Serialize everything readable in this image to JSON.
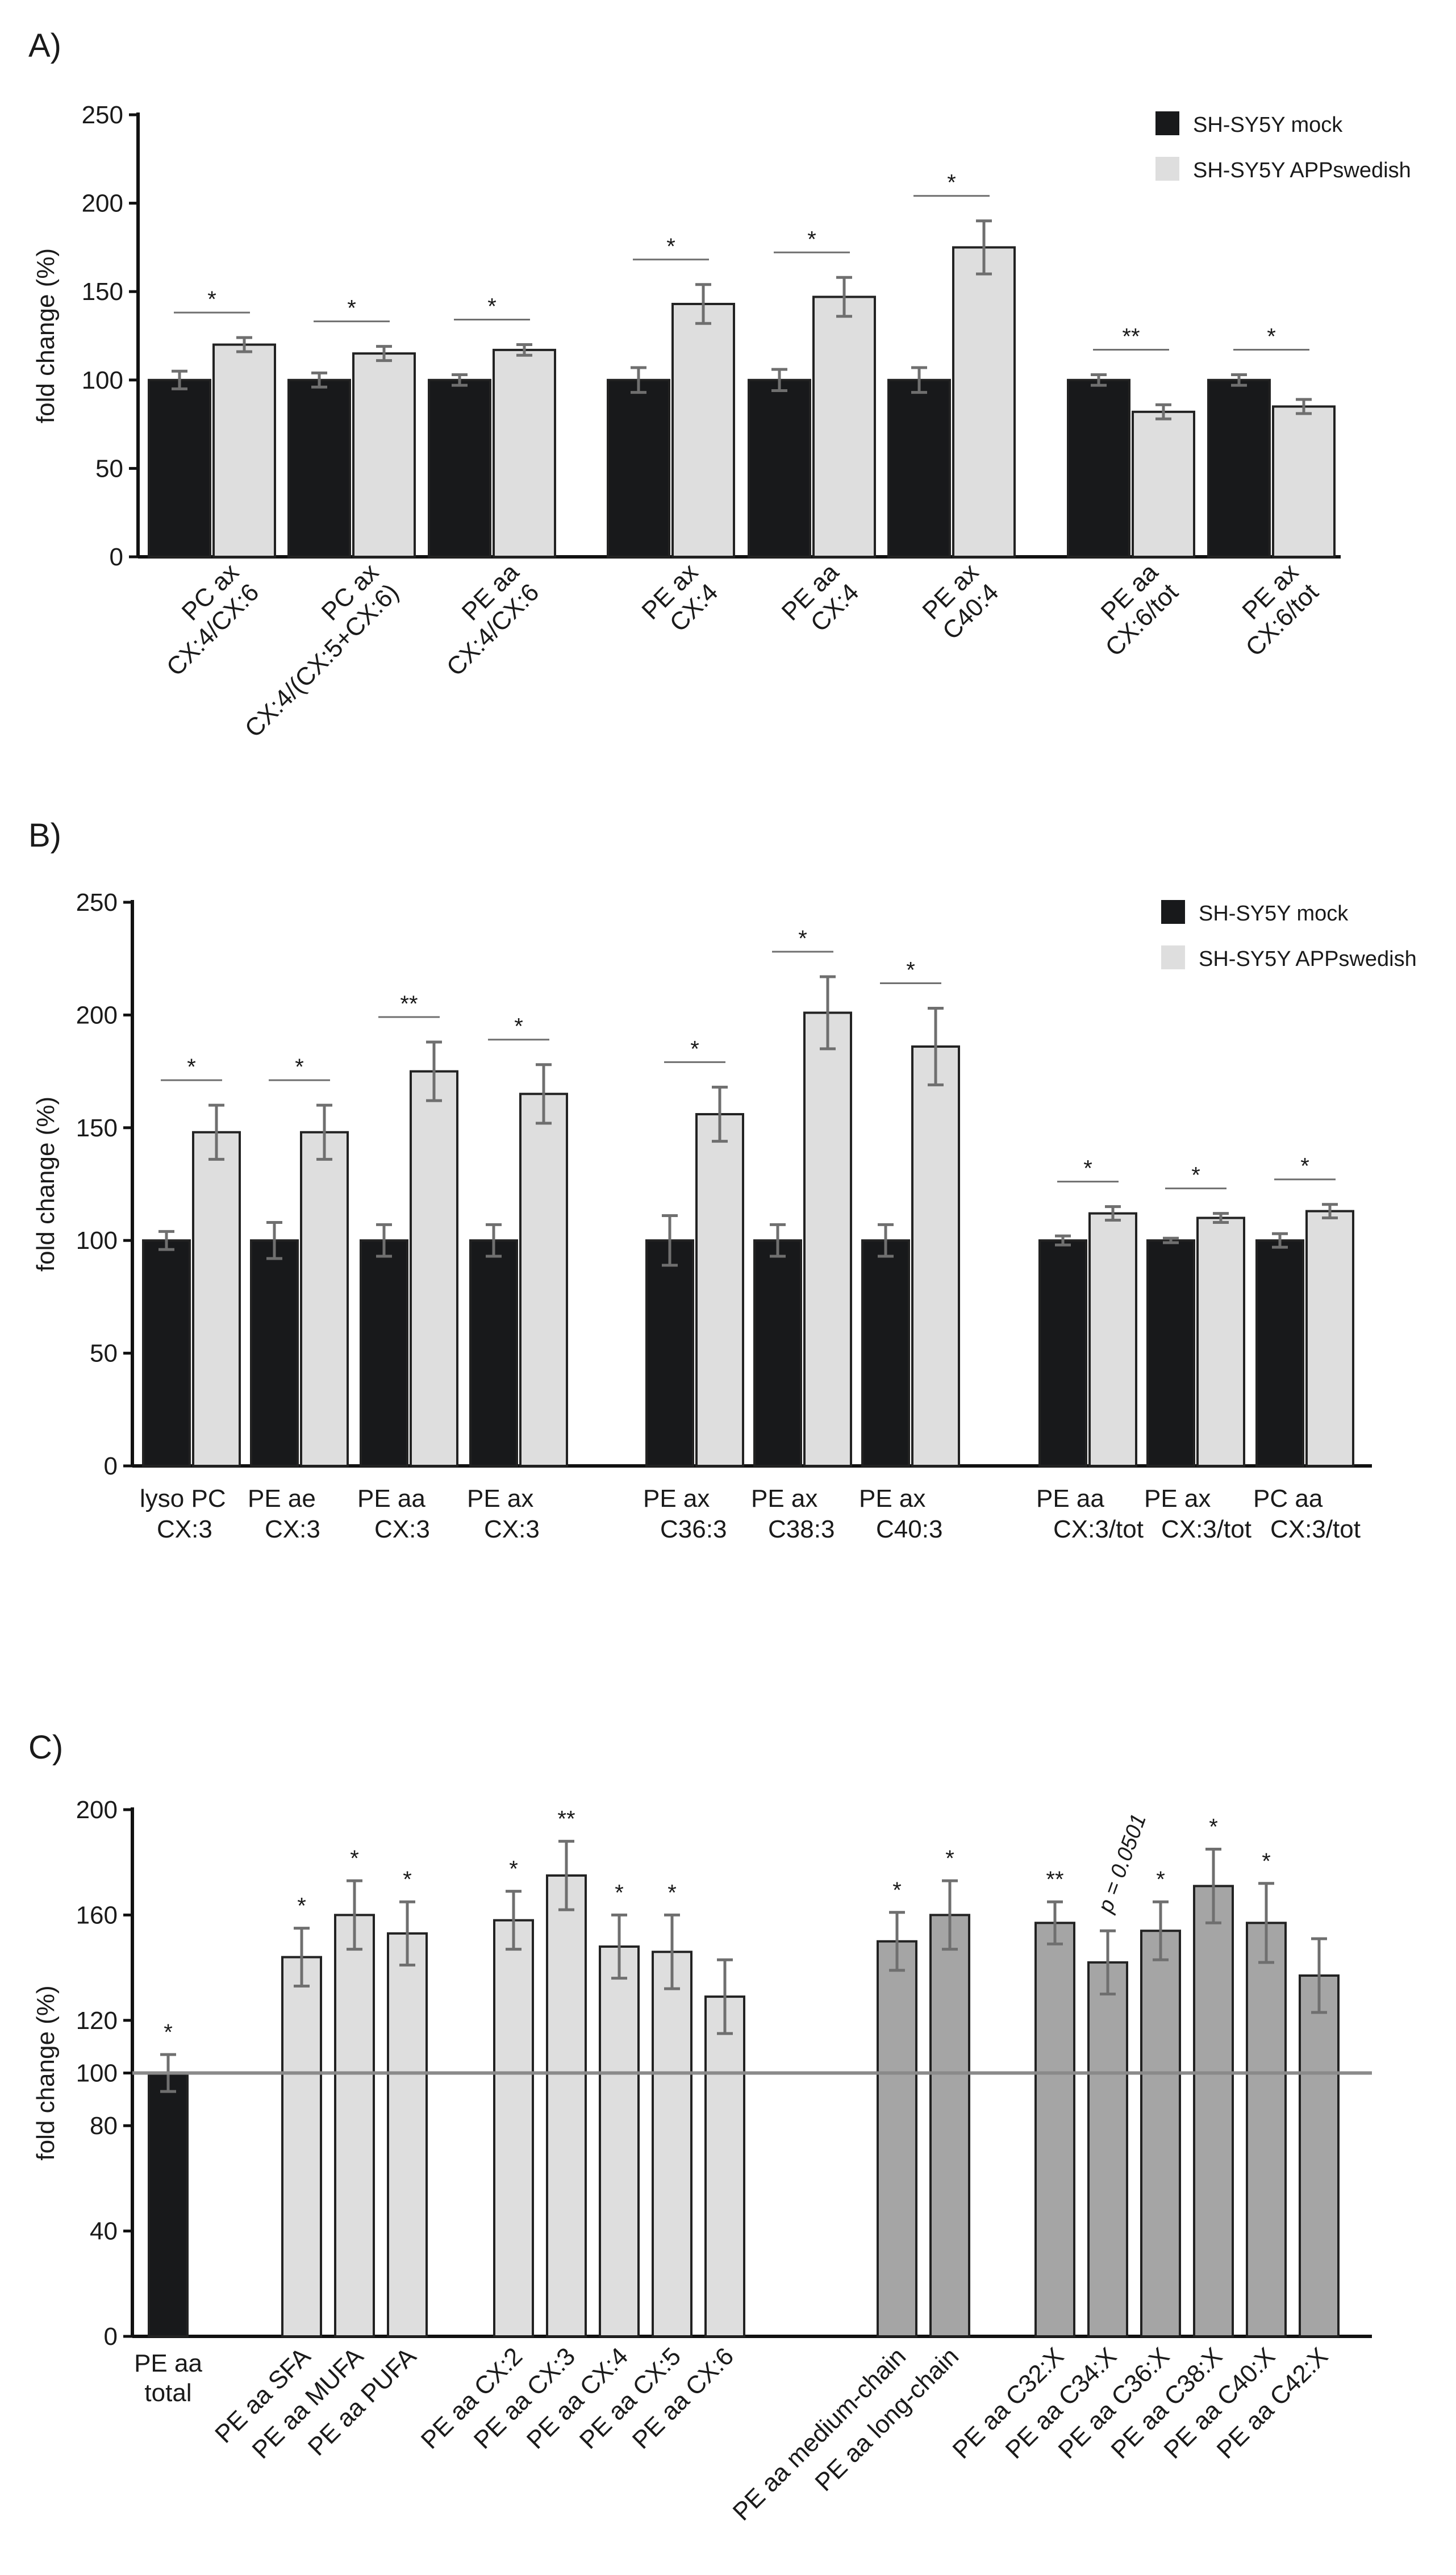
{
  "figure": {
    "colors": {
      "mock": "#18191b",
      "app": "#dedede",
      "grey": "#a5a5a5",
      "error": "#6f6f6f",
      "refline": "#8a8a8a"
    }
  },
  "chart_data": [
    {
      "panel": "A)",
      "type": "bar",
      "ylabel": "fold change (%)",
      "ylim": [
        0,
        250
      ],
      "yticks": [
        0,
        50,
        100,
        150,
        200,
        250
      ],
      "legend": [
        "SH-SY5Y mock",
        "SH-SY5Y APPswedish"
      ],
      "categories": [
        [
          "PC ax",
          "CX:4/CX:6"
        ],
        [
          "PC ax",
          "CX:4/(CX:5+CX:6)"
        ],
        [
          "PE aa",
          "CX:4/CX:6"
        ],
        [
          "PE ax",
          "CX:4"
        ],
        [
          "PE aa",
          "CX:4"
        ],
        [
          "PE ax",
          "C40:4"
        ],
        [
          "PE aa",
          "CX:6/tot"
        ],
        [
          "PE ax",
          "CX:6/tot"
        ]
      ],
      "series": [
        {
          "name": "SH-SY5Y mock",
          "values": [
            100,
            100,
            100,
            100,
            100,
            100,
            100,
            100
          ],
          "errors": [
            5,
            4,
            3,
            7,
            6,
            7,
            3,
            3
          ]
        },
        {
          "name": "SH-SY5Y APPswedish",
          "values": [
            120,
            115,
            117,
            143,
            147,
            175,
            82,
            85
          ],
          "errors": [
            4,
            4,
            3,
            11,
            11,
            15,
            4,
            4
          ]
        }
      ],
      "significance": [
        "*",
        "*",
        "*",
        "*",
        "*",
        "*",
        "**",
        "*"
      ]
    },
    {
      "panel": "B)",
      "type": "bar",
      "ylabel": "fold change (%)",
      "ylim": [
        0,
        250
      ],
      "yticks": [
        0,
        50,
        100,
        150,
        200,
        250
      ],
      "legend": [
        "SH-SY5Y mock",
        "SH-SY5Y APPswedish"
      ],
      "categories": [
        [
          "lyso PC",
          "CX:3"
        ],
        [
          "PE ae",
          "CX:3"
        ],
        [
          "PE aa",
          "CX:3"
        ],
        [
          "PE ax",
          "CX:3"
        ],
        [
          "PE ax",
          "C36:3"
        ],
        [
          "PE ax",
          "C38:3"
        ],
        [
          "PE ax",
          "C40:3"
        ],
        [
          "PE aa",
          "CX:3/tot"
        ],
        [
          "PE ax",
          "CX:3/tot"
        ],
        [
          "PC aa",
          "CX:3/tot"
        ]
      ],
      "series": [
        {
          "name": "SH-SY5Y mock",
          "values": [
            100,
            100,
            100,
            100,
            100,
            100,
            100,
            100,
            100,
            100
          ],
          "errors": [
            4,
            8,
            7,
            7,
            11,
            7,
            7,
            2,
            1,
            3
          ]
        },
        {
          "name": "SH-SY5Y APPswedish",
          "values": [
            148,
            148,
            175,
            165,
            156,
            201,
            186,
            112,
            110,
            113
          ],
          "errors": [
            12,
            12,
            13,
            13,
            12,
            16,
            17,
            3,
            2,
            3
          ]
        }
      ],
      "significance": [
        "*",
        "*",
        "**",
        "*",
        "*",
        "*",
        "*",
        "*",
        "*",
        "*"
      ]
    },
    {
      "panel": "C)",
      "type": "bar",
      "ylabel": "fold change (%)",
      "ylim": [
        0,
        200
      ],
      "yticks": [
        0,
        40,
        80,
        100,
        120,
        160,
        200
      ],
      "reference_line": 100,
      "categories": [
        "PE aa total",
        "PE aa SFA",
        "PE aa MUFA",
        "PE aa PUFA",
        "PE aa CX:2",
        "PE aa CX:3",
        "PE aa CX:4",
        "PE aa CX:5",
        "PE aa CX:6",
        "PE aa medium-chain",
        "PE aa long-chain",
        "PE aa C32:X",
        "PE aa C34:X",
        "PE aa C36:X",
        "PE aa C38:X",
        "PE aa C40:X",
        "PE aa C42:X"
      ],
      "category_labels": [
        [
          "PE aa",
          "total"
        ],
        "PE aa SFA",
        "PE aa MUFA",
        "PE aa PUFA",
        "PE aa CX:2",
        "PE aa CX:3",
        "PE aa CX:4",
        "PE aa CX:5",
        "PE aa CX:6",
        "PE aa medium-chain",
        "PE aa long-chain",
        "PE aa C32:X",
        "PE aa C34:X",
        "PE aa C36:X",
        "PE aa C38:X",
        "PE aa C40:X",
        "PE aa C42:X"
      ],
      "values": [
        100,
        144,
        160,
        153,
        158,
        175,
        148,
        146,
        129,
        150,
        160,
        157,
        142,
        154,
        171,
        157,
        137
      ],
      "errors": [
        7,
        11,
        13,
        12,
        11,
        13,
        12,
        14,
        14,
        11,
        13,
        8,
        12,
        11,
        14,
        15,
        14
      ],
      "fill": [
        "mock",
        "app",
        "app",
        "app",
        "app",
        "app",
        "app",
        "app",
        "app",
        "grey",
        "grey",
        "grey",
        "grey",
        "grey",
        "grey",
        "grey",
        "grey"
      ],
      "significance": [
        "*",
        "*",
        "*",
        "*",
        "*",
        "**",
        "*",
        "*",
        "",
        "*",
        "*",
        "**",
        "",
        "*",
        "*",
        "*",
        ""
      ],
      "annotation": {
        "category": "PE aa C34:X",
        "text": "p = 0.0501"
      }
    }
  ]
}
